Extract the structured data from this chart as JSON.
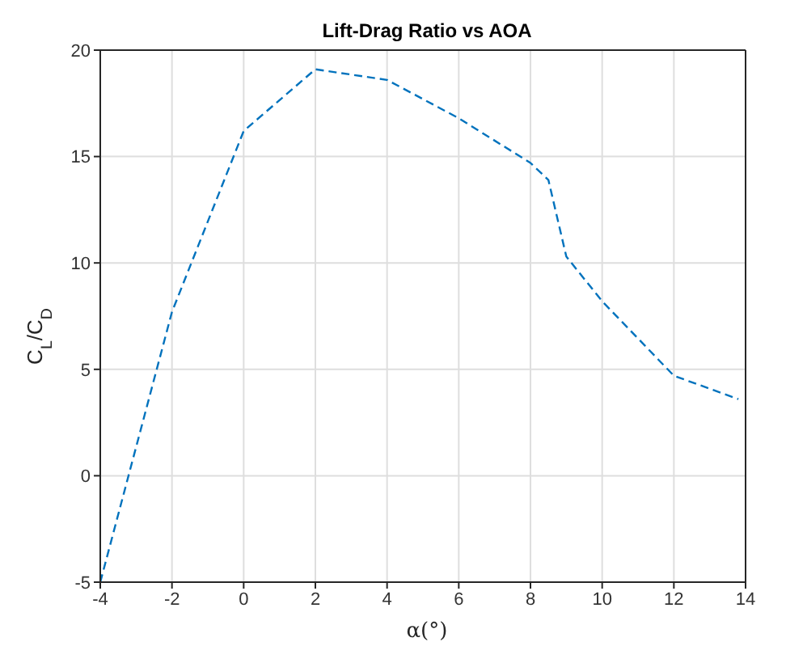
{
  "chart_data": {
    "type": "line",
    "title": "Lift-Drag Ratio vs AOA",
    "xlabel": "α(°)",
    "ylabel": "C$_{L}$/C$_{D}$",
    "x": [
      -4,
      -2,
      0,
      2,
      4,
      6,
      8,
      8.5,
      9,
      10,
      12,
      13.8
    ],
    "series": [
      {
        "color": "#0072bd",
        "values": [
          -5,
          7.7,
          16.2,
          19.1,
          18.6,
          16.8,
          14.7,
          13.9,
          10.3,
          8.2,
          4.7,
          3.6
        ]
      }
    ],
    "xlim": [
      -4,
      14
    ],
    "xticks": [
      -4,
      -2,
      0,
      2,
      4,
      6,
      8,
      10,
      12,
      14
    ],
    "ylim": [
      -5,
      20
    ],
    "yticks": [
      -5,
      0,
      5,
      10,
      15,
      20
    ],
    "grid": true,
    "line_style": "dashed",
    "marker": "none",
    "legend": false
  }
}
